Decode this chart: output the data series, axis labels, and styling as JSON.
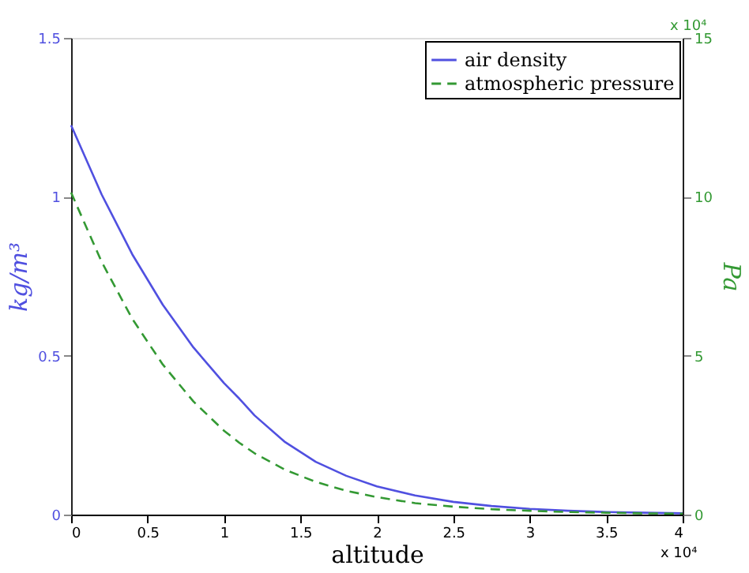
{
  "chart_data": {
    "type": "line",
    "xlabel": "altitude",
    "ylabel": "kg/m³",
    "y2label": "Pa",
    "x": [
      0,
      0.2,
      0.4,
      0.6,
      0.8,
      1.0,
      1.1,
      1.2,
      1.4,
      1.6,
      1.8,
      2.0,
      2.25,
      2.5,
      2.75,
      3.0,
      3.25,
      3.5,
      3.75,
      4.0
    ],
    "series": [
      {
        "name": "air density",
        "color": "#5050e0",
        "line_style": "solid",
        "axis": "y",
        "values": [
          1.225,
          1.007,
          0.819,
          0.66,
          0.526,
          0.414,
          0.365,
          0.312,
          0.228,
          0.166,
          0.122,
          0.089,
          0.06,
          0.04,
          0.027,
          0.018,
          0.012,
          0.008,
          0.006,
          0.004
        ]
      },
      {
        "name": "atmospheric pressure",
        "color": "#339933",
        "line_style": "dashed",
        "axis": "y2",
        "values": [
          10.13,
          7.95,
          6.16,
          4.72,
          3.56,
          2.64,
          2.26,
          1.93,
          1.41,
          1.03,
          0.75,
          0.55,
          0.36,
          0.25,
          0.17,
          0.12,
          0.08,
          0.06,
          0.04,
          0.03
        ]
      }
    ],
    "xlim": [
      0,
      4
    ],
    "xticks": [
      0,
      0.5,
      1,
      1.5,
      2,
      2.5,
      3,
      3.5,
      4
    ],
    "ylim": [
      0,
      1.5
    ],
    "yticks": [
      0,
      0.5,
      1,
      1.5
    ],
    "y2lim": [
      0,
      15
    ],
    "y2ticks": [
      0,
      5,
      10,
      15
    ],
    "annotations": [
      "x 10⁴",
      "x 10⁴"
    ],
    "legend": "top right",
    "grid": false
  }
}
